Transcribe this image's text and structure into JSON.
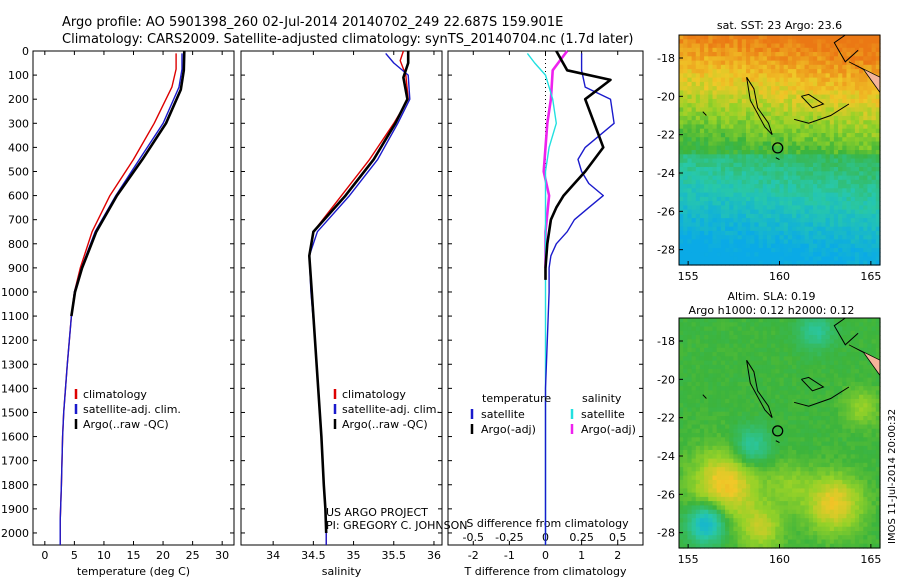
{
  "header": {
    "line1": "Argo profile: AO 5901398_260 02-Jul-2014 20140702_249 22.687S 159.901E",
    "line2": "Climatology: CARS2009. Satellite-adjusted climatology: synTS_20140704.nc (1.7d later)"
  },
  "colors": {
    "clim": "#dd0000",
    "sat": "#1a1acc",
    "argo": "#000000",
    "sal_sat": "#22e0e0",
    "sal_argo": "#ee22ee"
  },
  "credit": {
    "line1": "US ARGO PROJECT",
    "line2": "PI: GREGORY C. JOHNSON"
  },
  "side_label": "IMOS 11-Jul-2014 20:00:32",
  "chart_data": [
    {
      "type": "line",
      "xlabel": "temperature (deg C)",
      "xlim": [
        -2,
        32
      ],
      "ylim": [
        2050,
        0
      ],
      "xticks": [
        0,
        5,
        10,
        15,
        20,
        25,
        30
      ],
      "yticks": [
        0,
        100,
        200,
        300,
        400,
        500,
        600,
        700,
        800,
        900,
        1000,
        1100,
        1200,
        1300,
        1400,
        1500,
        1600,
        1700,
        1800,
        1900,
        2000
      ],
      "legend": [
        "climatology",
        "satellite-adj. clim.",
        "Argo(..raw -QC)"
      ],
      "series": [
        {
          "name": "climatology",
          "color": "clim",
          "x": [
            22.2,
            22.2,
            21.5,
            18.5,
            15,
            11,
            8,
            6,
            5,
            4.5,
            3.8,
            3.5,
            3.2,
            3,
            2.8,
            2.6,
            2.6
          ],
          "y": [
            10,
            75,
            150,
            300,
            450,
            600,
            750,
            900,
            1000,
            1100,
            1300,
            1400,
            1500,
            1600,
            1800,
            1950,
            2050
          ]
        },
        {
          "name": "satellite-adj. clim.",
          "color": "sat",
          "x": [
            23.2,
            23.2,
            22.7,
            20,
            16,
            12,
            8.5,
            6.2,
            5,
            4.5,
            3.8,
            3.5,
            3.2,
            3,
            2.8,
            2.6,
            2.6
          ],
          "y": [
            10,
            75,
            150,
            300,
            450,
            600,
            750,
            900,
            1000,
            1100,
            1300,
            1400,
            1500,
            1600,
            1800,
            1950,
            2050
          ]
        },
        {
          "name": "Argo(..raw -QC)",
          "color": "argo",
          "x": [
            23.6,
            23.5,
            23,
            20.5,
            16.5,
            12.2,
            8.7,
            6.3,
            5.1,
            4.5
          ],
          "y": [
            0,
            80,
            160,
            300,
            450,
            600,
            750,
            900,
            1000,
            1100
          ]
        }
      ]
    },
    {
      "type": "line",
      "xlabel": "salinity",
      "xlim": [
        33.6,
        36.1
      ],
      "ylim": [
        2050,
        0
      ],
      "xticks": [
        34,
        34.5,
        35,
        35.5,
        36
      ],
      "legend": [
        "climatology",
        "satellite-adj. clim.",
        "Argo(..raw -QC)"
      ],
      "series": [
        {
          "name": "climatology",
          "color": "clim",
          "x": [
            35.62,
            35.58,
            35.65,
            35.68,
            35.5,
            35.2,
            34.85,
            34.5,
            34.45,
            34.48,
            34.52,
            34.56,
            34.6,
            34.63,
            34.65,
            34.66,
            34.66
          ],
          "y": [
            0,
            40,
            100,
            200,
            300,
            450,
            600,
            750,
            850,
            1000,
            1200,
            1400,
            1600,
            1800,
            1900,
            2000,
            2050
          ]
        },
        {
          "name": "satellite-adj. clim.",
          "color": "sat",
          "x": [
            35.4,
            35.5,
            35.68,
            35.7,
            35.55,
            35.3,
            34.95,
            34.55,
            34.45,
            34.47,
            34.52,
            34.56,
            34.6,
            34.63,
            34.65,
            34.66,
            34.66
          ],
          "y": [
            10,
            50,
            100,
            200,
            300,
            450,
            600,
            750,
            850,
            1000,
            1200,
            1400,
            1600,
            1800,
            1900,
            2000,
            2050
          ]
        },
        {
          "name": "Argo(..raw -QC)",
          "color": "argo",
          "x": [
            35.68,
            35.68,
            35.62,
            35.67,
            35.52,
            35.25,
            34.9,
            34.5,
            34.45,
            34.48,
            34.52,
            34.56,
            34.6,
            34.63,
            34.65,
            34.66
          ],
          "y": [
            0,
            50,
            110,
            200,
            300,
            450,
            600,
            750,
            850,
            1000,
            1200,
            1400,
            1600,
            1800,
            1900,
            2000
          ]
        }
      ]
    },
    {
      "type": "line",
      "xlabel": "T difference from climatology",
      "top_label": "S difference from climatology",
      "xlim": [
        -2.7,
        2.7
      ],
      "ylim": [
        2050,
        0
      ],
      "xticks": [
        -2,
        -1,
        0,
        1,
        2
      ],
      "top_ticks": [
        -0.5,
        -0.25,
        0,
        0.25,
        0.5
      ],
      "legend": {
        "temperature": "temperature",
        "salinity": "salinity",
        "sat": "satellite",
        "argo": "Argo(-adj)"
      },
      "series": [
        {
          "name": "satellite",
          "color": "sat",
          "x": [
            1.0,
            1.0,
            1.1,
            1.8,
            1.9,
            1.1,
            0.9,
            1.0,
            1.2,
            1.6,
            1.2,
            0.8,
            0.6,
            0.3,
            0.15,
            0.1,
            0.1,
            0.0,
            0.0
          ],
          "y": [
            10,
            80,
            150,
            200,
            300,
            400,
            450,
            500,
            550,
            600,
            650,
            700,
            750,
            800,
            850,
            900,
            1000,
            1400,
            2050
          ]
        },
        {
          "name": "Argo(-adj)",
          "color": "argo",
          "x": [
            0.3,
            0.6,
            1.8,
            1.1,
            1.6,
            1.1,
            0.8,
            0.5,
            0.3,
            0.15,
            0.05,
            0.0,
            0.0
          ],
          "y": [
            0,
            80,
            120,
            200,
            400,
            500,
            550,
            600,
            650,
            700,
            800,
            900,
            950
          ]
        },
        {
          "name": "satellite",
          "color": "sal_sat",
          "x": [
            -0.5,
            -0.3,
            0.0,
            0.2,
            0.3,
            0.1,
            0.0,
            0.0
          ],
          "y": [
            10,
            50,
            100,
            200,
            300,
            400,
            500,
            2050
          ]
        },
        {
          "name": "Argo(-adj)",
          "color": "sal_argo",
          "x": [
            0.6,
            0.4,
            0.2,
            0.15,
            0.05,
            -0.05,
            0.1,
            0.0,
            0.0
          ],
          "y": [
            0,
            40,
            80,
            200,
            300,
            500,
            600,
            750,
            900
          ]
        }
      ]
    },
    {
      "type": "heatmap",
      "title": "sat. SST: 23 Argo: 23.6",
      "xlim": [
        154.5,
        165.5
      ],
      "ylim": [
        -28.8,
        -16.8
      ],
      "xticks": [
        155,
        160,
        165
      ],
      "yticks": [
        -18,
        -20,
        -22,
        -24,
        -26,
        -28
      ],
      "marker": {
        "lon": 159.9,
        "lat": -22.69
      }
    },
    {
      "type": "heatmap",
      "title": "Altim. SLA: 0.19",
      "subtitle": "Argo h1000: 0.12 h2000: 0.12",
      "xlim": [
        154.5,
        165.5
      ],
      "ylim": [
        -28.8,
        -16.8
      ],
      "xticks": [
        155,
        160,
        165
      ],
      "yticks": [
        -18,
        -20,
        -22,
        -24,
        -26,
        -28
      ],
      "marker": {
        "lon": 159.9,
        "lat": -22.69
      }
    }
  ]
}
